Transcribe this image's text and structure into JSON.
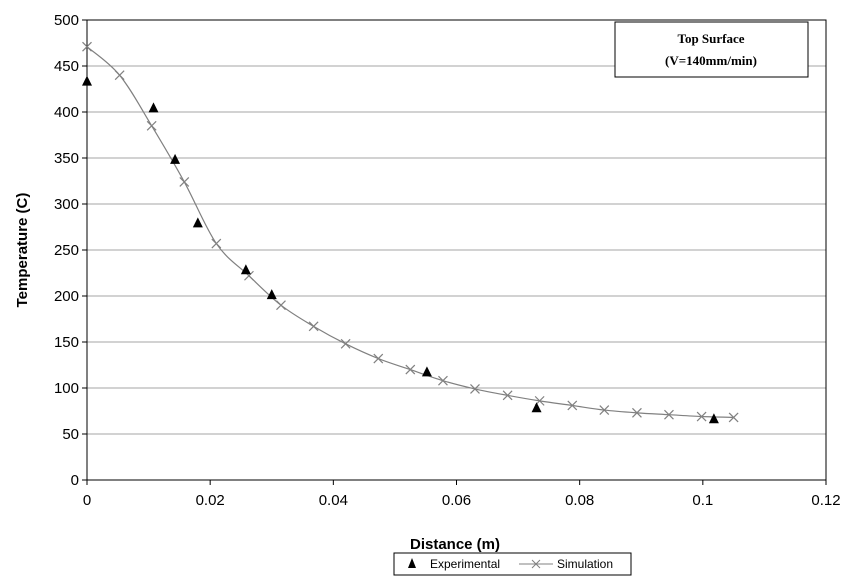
{
  "chart_data": {
    "type": "scatter",
    "title": "",
    "xlabel": "Distance (m)",
    "ylabel": "Temperature (C)",
    "xlim": [
      0,
      0.12
    ],
    "ylim": [
      0,
      500
    ],
    "x_ticks": [
      "0",
      "0.02",
      "0.04",
      "0.06",
      "0.08",
      "0.1",
      "0.12"
    ],
    "y_ticks": [
      "0",
      "50",
      "100",
      "150",
      "200",
      "250",
      "300",
      "350",
      "400",
      "450",
      "500"
    ],
    "grid": "horizontal",
    "legend_position": "bottom",
    "annotation": {
      "line1": "Top Surface",
      "line2": "(V=140mm/min)"
    },
    "series": [
      {
        "name": "Experimental",
        "marker": "triangle",
        "color": "#000000",
        "points": [
          {
            "x": 0.0,
            "y": 433
          },
          {
            "x": 0.0108,
            "y": 404
          },
          {
            "x": 0.0143,
            "y": 348
          },
          {
            "x": 0.018,
            "y": 279
          },
          {
            "x": 0.0258,
            "y": 228
          },
          {
            "x": 0.03,
            "y": 201
          },
          {
            "x": 0.0552,
            "y": 117
          },
          {
            "x": 0.073,
            "y": 78
          },
          {
            "x": 0.1018,
            "y": 66
          }
        ]
      },
      {
        "name": "Simulation",
        "marker": "x",
        "color": "#808080",
        "points": [
          {
            "x": 0.0,
            "y": 471
          },
          {
            "x": 0.0053,
            "y": 440
          },
          {
            "x": 0.0105,
            "y": 385
          },
          {
            "x": 0.0158,
            "y": 324
          },
          {
            "x": 0.021,
            "y": 257
          },
          {
            "x": 0.0263,
            "y": 222
          },
          {
            "x": 0.0315,
            "y": 190
          },
          {
            "x": 0.0368,
            "y": 167
          },
          {
            "x": 0.042,
            "y": 148
          },
          {
            "x": 0.0473,
            "y": 132
          },
          {
            "x": 0.0525,
            "y": 120
          },
          {
            "x": 0.0578,
            "y": 108
          },
          {
            "x": 0.063,
            "y": 99
          },
          {
            "x": 0.0683,
            "y": 92
          },
          {
            "x": 0.0735,
            "y": 86
          },
          {
            "x": 0.0788,
            "y": 81
          },
          {
            "x": 0.084,
            "y": 76
          },
          {
            "x": 0.0893,
            "y": 73
          },
          {
            "x": 0.0945,
            "y": 71
          },
          {
            "x": 0.0998,
            "y": 69
          },
          {
            "x": 0.105,
            "y": 68
          }
        ]
      }
    ]
  }
}
